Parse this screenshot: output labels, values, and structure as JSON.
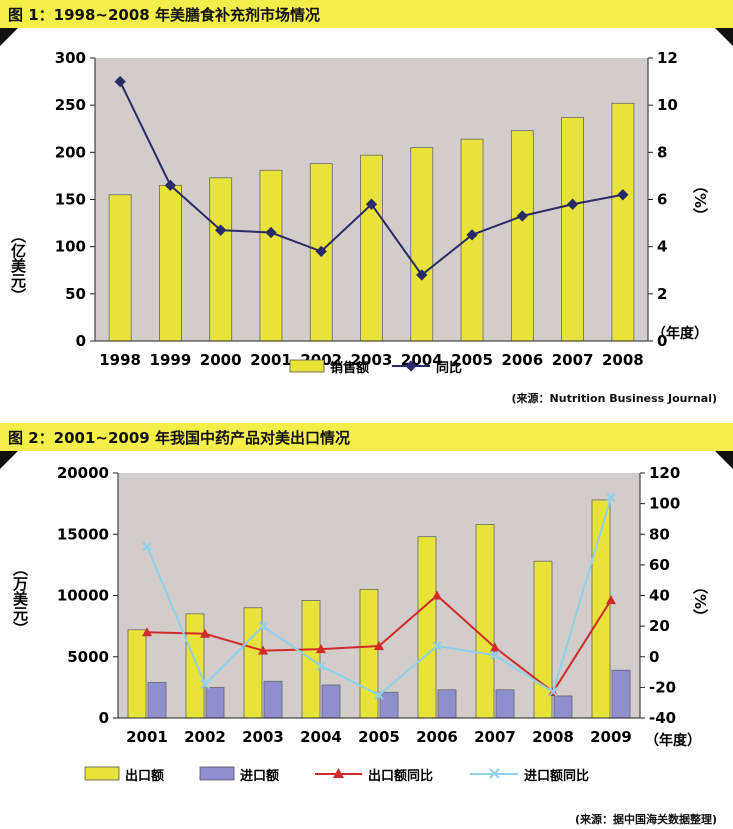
{
  "chart_data": [
    {
      "type": "bar",
      "title": "图 1：1998~2008 年美膳食补充剂市场情况",
      "categories": [
        "1998",
        "1999",
        "2000",
        "2001",
        "2002",
        "2003",
        "2004",
        "2005",
        "2006",
        "2007",
        "2008"
      ],
      "xunit": "（年度）",
      "ylabel": "（亿美元）",
      "y2label": "（%）",
      "ylim": [
        0,
        300
      ],
      "yticks": [
        0,
        50,
        100,
        150,
        200,
        250,
        300
      ],
      "y2lim": [
        0,
        12
      ],
      "y2ticks": [
        0,
        2,
        4,
        6,
        8,
        10,
        12
      ],
      "series": [
        {
          "name": "销售额",
          "kind": "bar",
          "axis": "left",
          "color": "#e8e33a",
          "values": [
            155,
            165,
            173,
            181,
            188,
            197,
            205,
            214,
            223,
            237,
            252
          ]
        },
        {
          "name": "同比",
          "kind": "line",
          "axis": "right",
          "color": "#2a2a66",
          "values": [
            11.0,
            6.6,
            4.7,
            4.6,
            3.8,
            5.8,
            2.8,
            4.5,
            5.3,
            5.8,
            6.2
          ]
        }
      ],
      "source": "(来源：Nutrition Business Journal)"
    },
    {
      "type": "bar",
      "title": "图 2：2001~2009 年我国中药产品对美出口情况",
      "categories": [
        "2001",
        "2002",
        "2003",
        "2004",
        "2005",
        "2006",
        "2007",
        "2008",
        "2009"
      ],
      "xunit": "（年度）",
      "ylabel": "（万美元）",
      "y2label": "（%）",
      "ylim": [
        0,
        20000
      ],
      "yticks": [
        0,
        5000,
        10000,
        15000,
        20000
      ],
      "y2lim": [
        -40,
        120
      ],
      "y2ticks": [
        -40,
        -20,
        0,
        20,
        40,
        60,
        80,
        100,
        120
      ],
      "series": [
        {
          "name": "出口额",
          "kind": "bar",
          "axis": "left",
          "color": "#e8e33a",
          "values": [
            7200,
            8500,
            9000,
            9600,
            10500,
            14800,
            15800,
            12800,
            17800
          ]
        },
        {
          "name": "进口额",
          "kind": "bar",
          "axis": "left",
          "color": "#8f8fcf",
          "values": [
            2900,
            2500,
            3000,
            2700,
            2100,
            2300,
            2300,
            1800,
            3900
          ]
        },
        {
          "name": "出口额同比",
          "kind": "line",
          "axis": "right",
          "color": "#d02a2a",
          "marker": "triangle",
          "values": [
            16,
            15,
            4,
            5,
            7,
            40,
            6,
            -23,
            37
          ]
        },
        {
          "name": "进口额同比",
          "kind": "line",
          "axis": "right",
          "color": "#8fd0ea",
          "marker": "x",
          "values": [
            72,
            -18,
            20,
            -6,
            -25,
            7,
            1,
            -23,
            104
          ]
        }
      ],
      "source": "(来源：据中国海关数据整理)"
    }
  ]
}
